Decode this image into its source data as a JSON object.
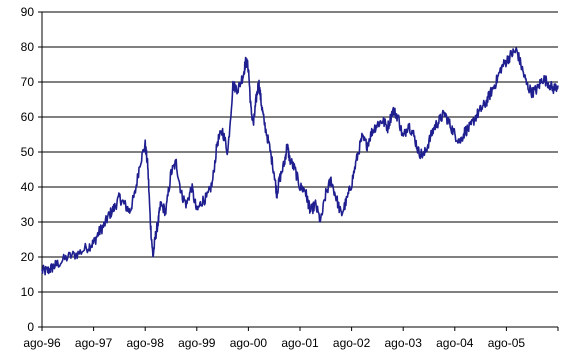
{
  "chart_data": {
    "type": "line",
    "title": "",
    "xlabel": "",
    "ylabel": "",
    "ylim": [
      0,
      90
    ],
    "yticks": [
      0,
      10,
      20,
      30,
      40,
      50,
      60,
      70,
      80,
      90
    ],
    "xticks": [
      "ago-96",
      "ago-97",
      "ago-98",
      "ago-99",
      "ago-00",
      "ago-01",
      "ago-02",
      "ago-03",
      "ago-04",
      "ago-05"
    ],
    "grid": "horizontal",
    "legend": "none",
    "series_color": "#1f1f8f",
    "series": [
      {
        "x": [
          0.0,
          0.1,
          0.2,
          0.3,
          0.5,
          0.7,
          0.9,
          1.0,
          1.1,
          1.2,
          1.3,
          1.4,
          1.5,
          1.6,
          1.7,
          1.8,
          1.9,
          2.0,
          2.05,
          2.1,
          2.15,
          2.2,
          2.25,
          2.3,
          2.4,
          2.5,
          2.6,
          2.7,
          2.8,
          2.9,
          3.0,
          3.1,
          3.2,
          3.3,
          3.4,
          3.5,
          3.6,
          3.7,
          3.8,
          3.9,
          3.95,
          4.0,
          4.05,
          4.1,
          4.15,
          4.2,
          4.25,
          4.3,
          4.4,
          4.5,
          4.55,
          4.6,
          4.7,
          4.75,
          4.8,
          4.9,
          5.0,
          5.1,
          5.15,
          5.2,
          5.3,
          5.4,
          5.5,
          5.6,
          5.7,
          5.8,
          5.9,
          6.0,
          6.1,
          6.2,
          6.3,
          6.4,
          6.5,
          6.6,
          6.7,
          6.8,
          6.9,
          7.0,
          7.1,
          7.2,
          7.3,
          7.4,
          7.5,
          7.6,
          7.7,
          7.8,
          7.9,
          8.0,
          8.1,
          8.2,
          8.3,
          8.4,
          8.5,
          8.6,
          8.7,
          8.8,
          8.9,
          9.0,
          9.1,
          9.2,
          9.3,
          9.4,
          9.5,
          9.6,
          9.7,
          9.8,
          9.9,
          10.0
        ],
        "y": [
          16,
          16,
          17,
          18,
          20,
          21,
          23,
          24,
          27,
          29,
          32,
          34,
          37,
          35,
          33,
          38,
          47,
          52,
          46,
          30,
          20,
          26,
          30,
          35,
          33,
          44,
          47,
          38,
          35,
          40,
          33,
          36,
          37,
          41,
          53,
          56,
          50,
          69,
          68,
          72,
          76,
          74,
          62,
          58,
          65,
          70,
          64,
          59,
          52,
          44,
          38,
          42,
          47,
          52,
          48,
          45,
          40,
          39,
          36,
          33,
          35,
          30,
          38,
          42,
          37,
          32,
          36,
          41,
          48,
          54,
          52,
          56,
          58,
          59,
          57,
          62,
          60,
          54,
          58,
          55,
          50,
          49,
          53,
          57,
          59,
          61,
          58,
          55,
          53,
          56,
          57,
          60,
          62,
          64,
          67,
          70,
          74,
          76,
          78,
          79,
          74,
          69,
          67,
          68,
          71,
          70,
          68,
          69
        ]
      }
    ]
  }
}
